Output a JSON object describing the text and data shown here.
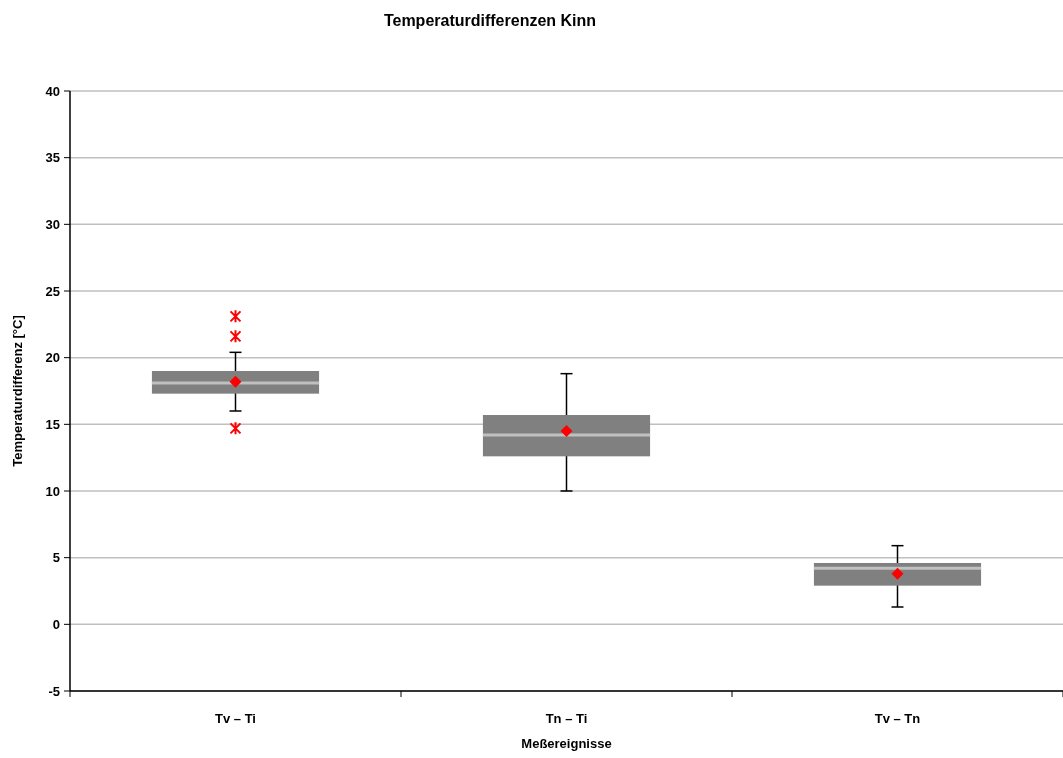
{
  "chart_data": {
    "type": "box",
    "title": "Temperaturdifferenzen Kinn",
    "xlabel": "Meßereignisse",
    "ylabel": "Temperaturdifferenz [°C]",
    "categories": [
      "Tv – Ti",
      "Tn – Ti",
      "Tv – Tn"
    ],
    "boxes": [
      {
        "low": 16.0,
        "q1": 17.3,
        "median": 18.1,
        "q3": 19.0,
        "high": 20.4,
        "mean": 18.2,
        "outliers": [
          23.1,
          21.6,
          14.7
        ]
      },
      {
        "low": 10.0,
        "q1": 12.6,
        "median": 14.2,
        "q3": 15.7,
        "high": 18.8,
        "mean": 14.5
      },
      {
        "low": 1.3,
        "q1": 2.9,
        "median": 4.2,
        "q3": 4.6,
        "high": 5.9,
        "mean": 3.8
      }
    ],
    "color": "#808080",
    "ylim": [
      -5,
      40
    ],
    "yticks": [
      -5,
      0,
      5,
      10,
      15,
      20,
      25,
      30,
      35,
      40
    ],
    "grid": "y"
  }
}
